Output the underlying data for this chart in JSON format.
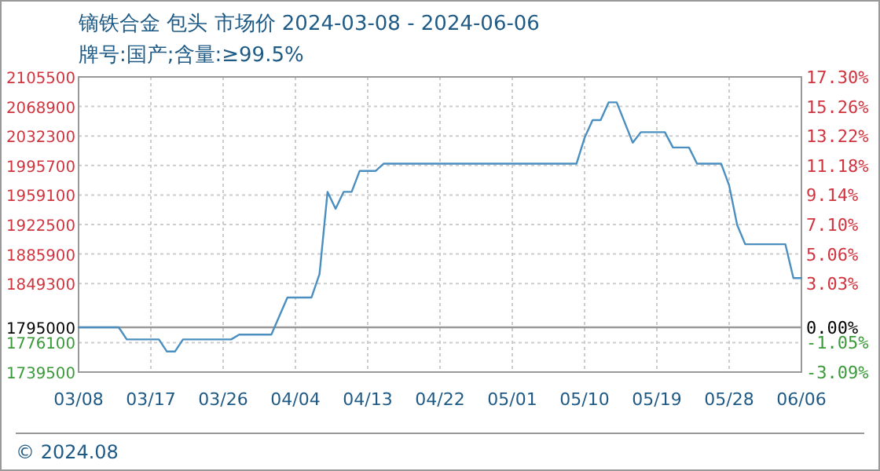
{
  "chart_data": {
    "type": "line",
    "title": "镝铁合金 包头 市场价 2024-03-08 - 2024-06-06",
    "subtitle": "牌号:国产;含量:≥99.5%",
    "annotations": [
      "© 2024.08"
    ],
    "x": [
      "2024-03-08",
      "2024-03-13",
      "2024-03-14",
      "2024-03-18",
      "2024-03-19",
      "2024-03-20",
      "2024-03-21",
      "2024-03-27",
      "2024-03-28",
      "2024-04-01",
      "2024-04-03",
      "2024-04-06",
      "2024-04-07",
      "2024-04-08",
      "2024-04-09",
      "2024-04-10",
      "2024-04-11",
      "2024-04-12",
      "2024-04-14",
      "2024-04-15",
      "2024-05-09",
      "2024-05-10",
      "2024-05-11",
      "2024-05-12",
      "2024-05-13",
      "2024-05-14",
      "2024-05-16",
      "2024-05-17",
      "2024-05-20",
      "2024-05-21",
      "2024-05-23",
      "2024-05-24",
      "2024-05-27",
      "2024-05-28",
      "2024-05-29",
      "2024-05-30",
      "2024-06-04",
      "2024-06-05",
      "2024-06-06"
    ],
    "series": [
      {
        "color": "#4a8fbf",
        "values": [
          1795000,
          1795000,
          1780000,
          1780000,
          1765000,
          1765000,
          1780000,
          1780000,
          1786000,
          1786000,
          1832000,
          1832000,
          1861000,
          1963000,
          1942000,
          1963000,
          1963000,
          1989000,
          1989000,
          1998000,
          1998000,
          2030000,
          2052000,
          2052000,
          2074000,
          2074000,
          2024000,
          2037000,
          2037000,
          2018000,
          2018000,
          1998000,
          1998000,
          1971000,
          1922000,
          1898000,
          1898000,
          1856000,
          1856000
        ]
      }
    ],
    "xlim": [
      "2024-03-08",
      "2024-06-06"
    ],
    "xticks": [
      {
        "value": "2024-03-08",
        "label": "03/08"
      },
      {
        "value": "2024-03-17",
        "label": "03/17"
      },
      {
        "value": "2024-03-26",
        "label": "03/26"
      },
      {
        "value": "2024-04-04",
        "label": "04/04"
      },
      {
        "value": "2024-04-13",
        "label": "04/13"
      },
      {
        "value": "2024-04-22",
        "label": "04/22"
      },
      {
        "value": "2024-05-01",
        "label": "05/01"
      },
      {
        "value": "2024-05-10",
        "label": "05/10"
      },
      {
        "value": "2024-05-19",
        "label": "05/19"
      },
      {
        "value": "2024-05-28",
        "label": "05/28"
      },
      {
        "value": "2024-06-06",
        "label": "06/06"
      }
    ],
    "ylim": [
      1739500,
      2105500
    ],
    "yticks": [
      1739500,
      1776100,
      1795000,
      1849300,
      1885900,
      1922500,
      1959100,
      1995700,
      2032300,
      2068900,
      2105500
    ],
    "y2lim": [
      -3.09,
      17.3
    ],
    "y2ticks": [
      {
        "value": -3.09,
        "label": "-3.09%"
      },
      {
        "value": -1.05,
        "label": "-1.05%"
      },
      {
        "value": 0,
        "label": "0.00%"
      },
      {
        "value": 3.03,
        "label": "3.03%"
      },
      {
        "value": 5.06,
        "label": "5.06%"
      },
      {
        "value": 7.1,
        "label": "7.10%"
      },
      {
        "value": 9.14,
        "label": "9.14%"
      },
      {
        "value": 11.18,
        "label": "11.18%"
      },
      {
        "value": 13.22,
        "label": "13.22%"
      },
      {
        "value": 15.26,
        "label": "15.26%"
      },
      {
        "value": 17.3,
        "label": "17.30%"
      }
    ],
    "ref_lines": [
      {
        "axis": "y",
        "value": 1795000,
        "color": "#999999"
      }
    ],
    "grid": true,
    "marker": "none",
    "line_style": "solid"
  }
}
